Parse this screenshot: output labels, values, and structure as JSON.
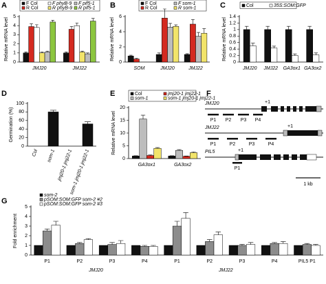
{
  "chart_data": [
    {
      "panel": "A",
      "type": "bar",
      "y_label": "Relative mRNA level",
      "categories": [
        "JMJ20",
        "JMJ22"
      ],
      "series": [
        {
          "name": "F Col",
          "color": "#111111",
          "values": [
            1.0,
            1.0
          ],
          "errors": [
            0.1,
            0.1
          ]
        },
        {
          "name": "R Col",
          "color": "#d42a20",
          "values": [
            3.9,
            3.6
          ],
          "errors": [
            0.3,
            0.3
          ]
        },
        {
          "name": "F phyB-9",
          "color": "#ffffff",
          "values": [
            3.8,
            4.0
          ],
          "errors": [
            0.3,
            0.3
          ]
        },
        {
          "name": "R phyB-9",
          "color": "#f2e46a",
          "values": [
            1.0,
            1.1
          ],
          "errors": [
            0.1,
            0.1
          ]
        },
        {
          "name": "F pif5-1",
          "color": "#bdbdbd",
          "values": [
            1.1,
            0.9
          ],
          "errors": [
            0.1,
            0.1
          ]
        },
        {
          "name": "R pif5-1",
          "color": "#8cc63f",
          "values": [
            4.4,
            4.5
          ],
          "errors": [
            0.2,
            0.3
          ]
        }
      ],
      "ylim": [
        0,
        5
      ],
      "yticks": [
        0,
        1,
        2,
        3,
        4,
        5
      ]
    },
    {
      "panel": "B",
      "type": "bar",
      "y_label": "Relative mRNA level",
      "categories": [
        "SOM",
        "JMJ20",
        "JMJ22"
      ],
      "series": [
        {
          "name": "F Col",
          "color": "#111111",
          "values": [
            0.8,
            1.0,
            1.0
          ],
          "errors": [
            0.1,
            0.2,
            0.1
          ]
        },
        {
          "name": "R Col",
          "color": "#d42a20",
          "values": [
            0.4,
            5.8,
            5.0
          ],
          "errors": [
            0.1,
            1.2,
            0.6
          ]
        },
        {
          "name": "F som-1",
          "color": "#bdbdbd",
          "values": [
            0,
            4.6,
            3.4
          ],
          "errors": [
            0,
            0.5,
            0.5
          ]
        },
        {
          "name": "R som-1",
          "color": "#f2e46a",
          "values": [
            0,
            4.7,
            3.8
          ],
          "errors": [
            0,
            0.2,
            0.6
          ]
        }
      ],
      "ylim": [
        0,
        6
      ],
      "yticks": [
        0,
        2,
        4,
        6
      ]
    },
    {
      "panel": "C",
      "type": "bar",
      "y_label": "Relative mRNA level",
      "categories": [
        "JMJ20",
        "JMJ22",
        "GA3ox1",
        "GA3ox2"
      ],
      "series": [
        {
          "name": "Col",
          "color": "#111111",
          "values": [
            1.0,
            1.0,
            1.0,
            1.0
          ],
          "errors": [
            0.1,
            0.1,
            0.1,
            0.1
          ]
        },
        {
          "name": "35S:SOM:GFP",
          "color": "#ffffff",
          "values": [
            0.5,
            0.43,
            0.2,
            0.22
          ],
          "errors": [
            0.08,
            0.06,
            0.05,
            0.06
          ]
        }
      ],
      "ylim": [
        0,
        1.4
      ],
      "yticks": [
        0,
        0.2,
        0.4,
        0.6,
        0.8,
        1,
        1.2,
        1.4
      ]
    },
    {
      "panel": "D",
      "type": "bar",
      "y_label": "Germination (%)",
      "categories": [
        "Col",
        "som-1",
        "jmj20-1 jmj22-1",
        "som-1 jmj20-1 jmj22-1"
      ],
      "series": [
        {
          "color": "#111111",
          "values": [
            0,
            80,
            0,
            52
          ],
          "errors": [
            0,
            4,
            0,
            5
          ]
        }
      ],
      "ylim": [
        0,
        100
      ],
      "yticks": [
        0,
        20,
        40,
        60,
        80,
        100
      ]
    },
    {
      "panel": "E",
      "type": "bar",
      "y_label": "Relative mRNA level",
      "categories": [
        "GA3ox1",
        "GA3ox2"
      ],
      "series": [
        {
          "name": "Col",
          "color": "#111111",
          "values": [
            1.0,
            1.0
          ],
          "errors": [
            0.1,
            0.1
          ]
        },
        {
          "name": "som-1",
          "color": "#bdbdbd",
          "values": [
            15.5,
            3.2
          ],
          "errors": [
            1.5,
            0.3
          ]
        },
        {
          "name": "jmj20-1 jmj22-1",
          "color": "#d42a20",
          "values": [
            1.2,
            0.9
          ],
          "errors": [
            0.2,
            0.1
          ]
        },
        {
          "name": "som-1 jmj20-1 jmj22-1",
          "color": "#f2e46a",
          "values": [
            4.0,
            2.3
          ],
          "errors": [
            0.3,
            0.3
          ]
        }
      ],
      "ylim": [
        0,
        20
      ],
      "yticks": [
        0,
        5,
        10,
        15,
        20
      ]
    },
    {
      "panel": "G",
      "type": "bar",
      "y_label": "Fold enrichment",
      "categories": [
        "P1",
        "P2",
        "P3",
        "P4",
        "P1",
        "P2",
        "P3",
        "P4",
        "PIL5 P1"
      ],
      "category_groups": [
        "JMJ20",
        "JMJ22"
      ],
      "series": [
        {
          "name": "som-2",
          "color": "#111111",
          "values": [
            1,
            1,
            1,
            1,
            1,
            1,
            1,
            1,
            1
          ]
        },
        {
          "name": "pSOM:SOM:GFP som-2 #2",
          "color": "#8c8c8c",
          "values": [
            2.5,
            1.2,
            1.1,
            0.9,
            3.0,
            1.4,
            1.0,
            1.2,
            1.1
          ],
          "errors": [
            0.2,
            0.1,
            0.2,
            0.1,
            0.5,
            0.2,
            0.1,
            0.1,
            0.1
          ]
        },
        {
          "name": "pSOM:SOM:GFP som-2 #3",
          "color": "#ffffff",
          "values": [
            3.1,
            1.6,
            1.2,
            0.9,
            3.8,
            2.1,
            1.1,
            1.2,
            1.0
          ],
          "errors": [
            0.4,
            0.1,
            0.3,
            0.1,
            0.6,
            0.3,
            0.2,
            0.2,
            0.1
          ]
        }
      ],
      "ylim": [
        0,
        5
      ],
      "yticks": [
        0,
        1,
        2,
        3,
        4,
        5
      ]
    }
  ],
  "gene_diagram": {
    "panel": "F",
    "genes": [
      {
        "name": "JMJ20",
        "tss": "+1",
        "primers": [
          "P1",
          "P2",
          "P3",
          "P4"
        ]
      },
      {
        "name": "JMJ22",
        "tss": "+1",
        "primers": [
          "P1",
          "P2",
          "P3",
          "P4"
        ]
      },
      {
        "name": "PIL5",
        "tss": "+1",
        "primers": [
          "P1"
        ]
      }
    ],
    "scale_bar": "1 kb"
  }
}
